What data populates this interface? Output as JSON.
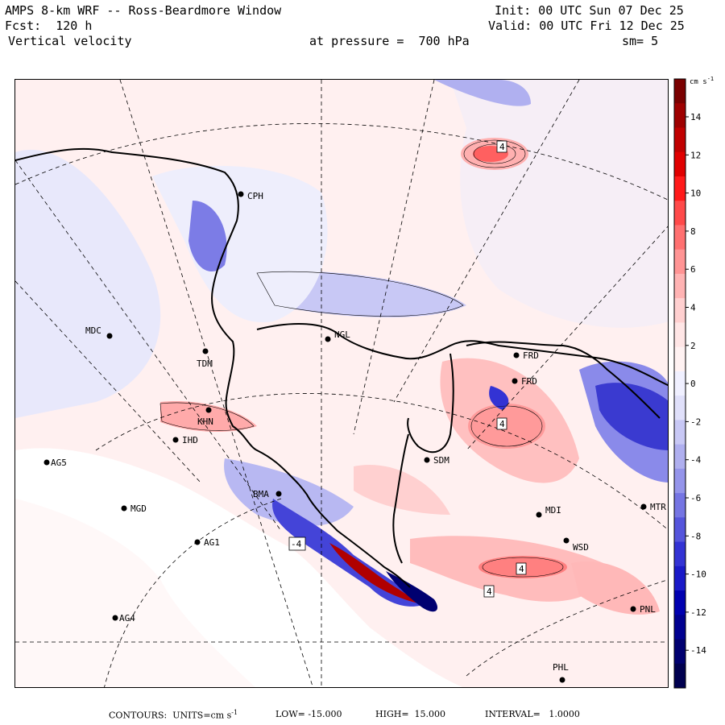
{
  "header": {
    "model_title": "AMPS 8-km WRF -- Ross-Beardmore Window",
    "init_label": "Init: 00 UTC Sun 07 Dec 25",
    "forecast_label": "Fcst:  120 h",
    "valid_label": "Valid: 00 UTC Fri 12 Dec 25",
    "field_label": "Vertical velocity",
    "level_label": "at pressure =  700 hPa",
    "smoothing_label": "sm= 5"
  },
  "colorbar": {
    "units": "cm s",
    "units_exp": "-1",
    "ticks": [
      "14",
      "12",
      "10",
      "8",
      "6",
      "4",
      "2",
      "0",
      "-2",
      "-4",
      "-6",
      "-8",
      "-10",
      "-12",
      "-14"
    ],
    "colors": [
      "#7a0000",
      "#9e0000",
      "#c00000",
      "#e00000",
      "#ff1a1a",
      "#ff4a4a",
      "#ff7070",
      "#ff9494",
      "#ffb3b3",
      "#ffd0d0",
      "#ffe6e6",
      "#fff2f2",
      "#f0f0ff",
      "#e0e0fa",
      "#c8c8f5",
      "#afafef",
      "#9494ea",
      "#7575e3",
      "#5555dc",
      "#3333d4",
      "#1a1ac8",
      "#0000b0",
      "#000090",
      "#000070",
      "#000050"
    ]
  },
  "stations": [
    {
      "name": "CPH"
    },
    {
      "name": "NGL"
    },
    {
      "name": "MDC"
    },
    {
      "name": "TDM"
    },
    {
      "name": "FRD"
    },
    {
      "name": "FRD"
    },
    {
      "name": "KHN"
    },
    {
      "name": "IHD"
    },
    {
      "name": "AG5"
    },
    {
      "name": "SDM"
    },
    {
      "name": "BMA"
    },
    {
      "name": "MGD"
    },
    {
      "name": "MDI"
    },
    {
      "name": "MTR"
    },
    {
      "name": "AG1"
    },
    {
      "name": "WSD"
    },
    {
      "name": "AG4"
    },
    {
      "name": "PNL"
    },
    {
      "name": "PHL"
    }
  ],
  "contour_labels": [
    "4",
    "4",
    "4",
    "4",
    "-4"
  ],
  "footer": {
    "contours_label": "CONTOURS:  UNITS=cm s",
    "units_exp": "-1",
    "low_label": "LOW= -15.000",
    "high_label": "HIGH=  15.000",
    "interval_label": "INTERVAL=   1.0000"
  }
}
